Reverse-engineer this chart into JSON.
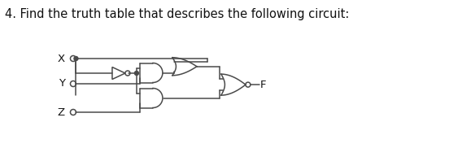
{
  "title": "4. Find the truth table that describes the following circuit:",
  "title_fontsize": 10.5,
  "bg_color": "#ffffff",
  "line_color": "#4a4a4a",
  "label_x": "X",
  "label_y": "Y",
  "label_z": "Z",
  "label_out": "F",
  "fig_width": 5.52,
  "fig_height": 1.82,
  "dpi": 100
}
